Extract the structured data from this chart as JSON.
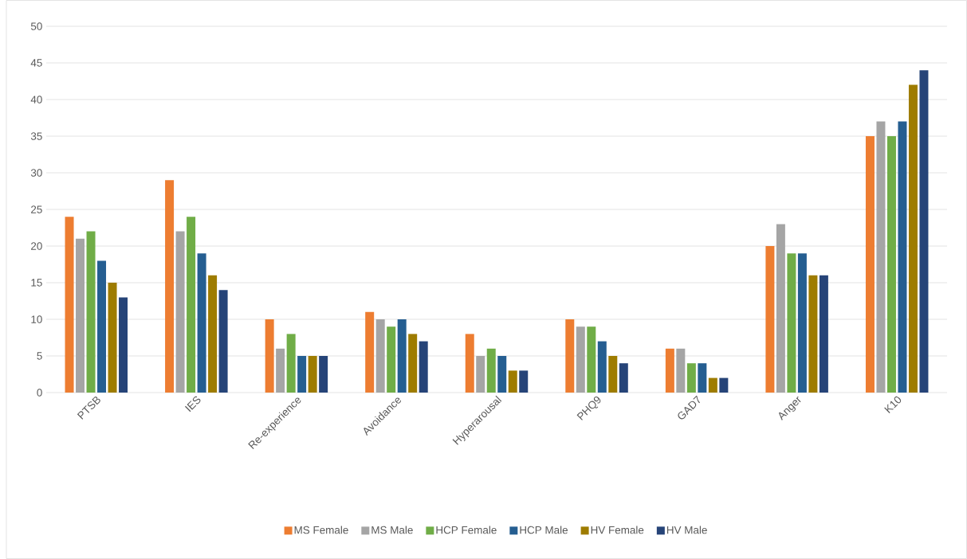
{
  "chart_data": {
    "type": "bar",
    "categories": [
      "PTSB",
      "IES",
      "Re-experience",
      "Avoidance",
      "Hyperarousal",
      "PHQ9",
      "GAD7",
      "Anger",
      "K10"
    ],
    "series": [
      {
        "name": "MS Female",
        "color": "#ed7d31",
        "values": [
          24,
          29,
          10,
          11,
          8,
          10,
          6,
          20,
          35
        ]
      },
      {
        "name": "MS Male",
        "color": "#a5a5a5",
        "values": [
          21,
          22,
          6,
          10,
          5,
          9,
          6,
          23,
          37
        ]
      },
      {
        "name": "HCP Female",
        "color": "#70ad47",
        "values": [
          22,
          24,
          8,
          9,
          6,
          9,
          4,
          19,
          35
        ]
      },
      {
        "name": "HCP Male",
        "color": "#255e91",
        "values": [
          18,
          19,
          5,
          10,
          5,
          7,
          4,
          19,
          37
        ]
      },
      {
        "name": "HV Female",
        "color": "#9e7c00",
        "values": [
          15,
          16,
          5,
          8,
          3,
          5,
          2,
          16,
          42
        ]
      },
      {
        "name": "HV Male",
        "color": "#264478",
        "values": [
          13,
          14,
          5,
          7,
          3,
          4,
          2,
          16,
          44
        ]
      }
    ],
    "ylim": [
      0,
      50
    ],
    "yticks": [
      0,
      5,
      10,
      15,
      20,
      25,
      30,
      35,
      40,
      45,
      50
    ],
    "grid": "y",
    "legend": "bottom"
  }
}
